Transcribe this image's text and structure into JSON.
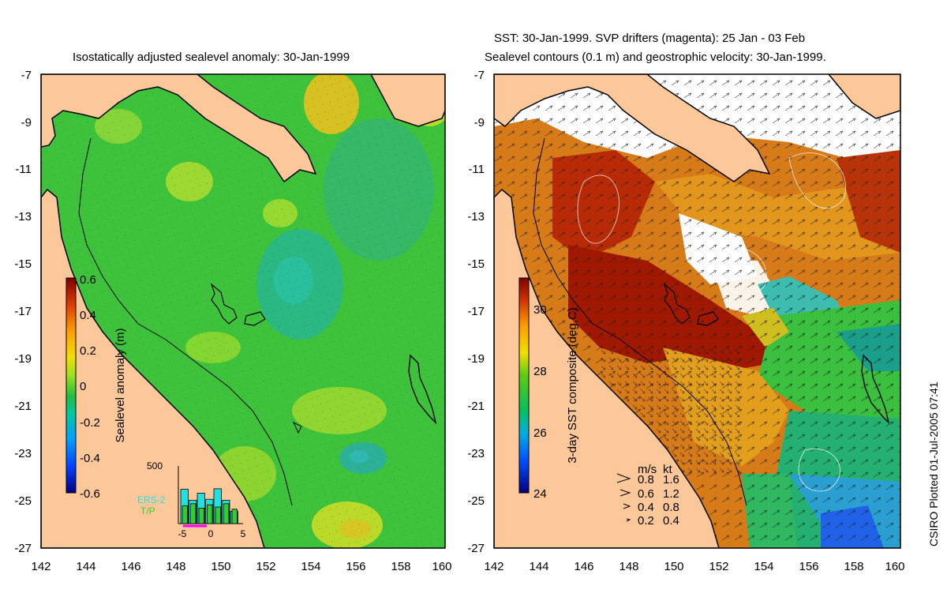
{
  "left_panel": {
    "title": "Isostatically adjusted sealevel anomaly: 30-Jan-1999",
    "colorbar": {
      "label": "Sealevel anomaly (m)",
      "ticks": [
        "0.6",
        "0.4",
        "0.2",
        "0",
        "-0.2",
        "-0.4",
        "-0.6"
      ],
      "range": [
        -0.6,
        0.6
      ]
    },
    "inset": {
      "ymax_label": "500",
      "xticks": [
        "-5",
        "0",
        "5"
      ],
      "legend": [
        "ERS-2",
        "T/P"
      ],
      "legend_colors": [
        "#22e0e0",
        "#33cc33"
      ],
      "bars": {
        "ers2": [
          0.62,
          0.42,
          0.55,
          0.44,
          0.63,
          0.42,
          0.22
        ],
        "tp": [
          0.32,
          0.36,
          0.28,
          0.34,
          0.3,
          0.36,
          0.26
        ]
      }
    }
  },
  "right_panel": {
    "title_line1": "SST: 30-Jan-1999. SVP drifters (magenta): 25 Jan - 03 Feb",
    "title_line2": "Sealevel contours (0.1 m) and geostrophic velocity: 30-Jan-1999.",
    "colorbar": {
      "label": "3-day SST composite (deg C)",
      "ticks": [
        "30",
        "28",
        "26",
        "24"
      ],
      "range": [
        24,
        31
      ]
    },
    "velocity_legend": {
      "header_ms": "m/s",
      "header_kt": "kt",
      "rows": [
        {
          "ms": "0.8",
          "kt": "1.6"
        },
        {
          "ms": "0.6",
          "kt": "1.2"
        },
        {
          "ms": "0.4",
          "kt": "0.8"
        },
        {
          "ms": "0.2",
          "kt": "0.4"
        }
      ]
    }
  },
  "lat_ticks": [
    "-7",
    "-9",
    "-11",
    "-13",
    "-15",
    "-17",
    "-19",
    "-21",
    "-23",
    "-25",
    "-27"
  ],
  "lon_ticks": [
    "142",
    "144",
    "146",
    "148",
    "150",
    "152",
    "154",
    "156",
    "158",
    "160"
  ],
  "credit": "CSIRO Plotted 01-Jul-2005 07:41",
  "colors": {
    "land": "#fcc89a",
    "no_data": "#ffffff",
    "coastline": "#000000"
  }
}
